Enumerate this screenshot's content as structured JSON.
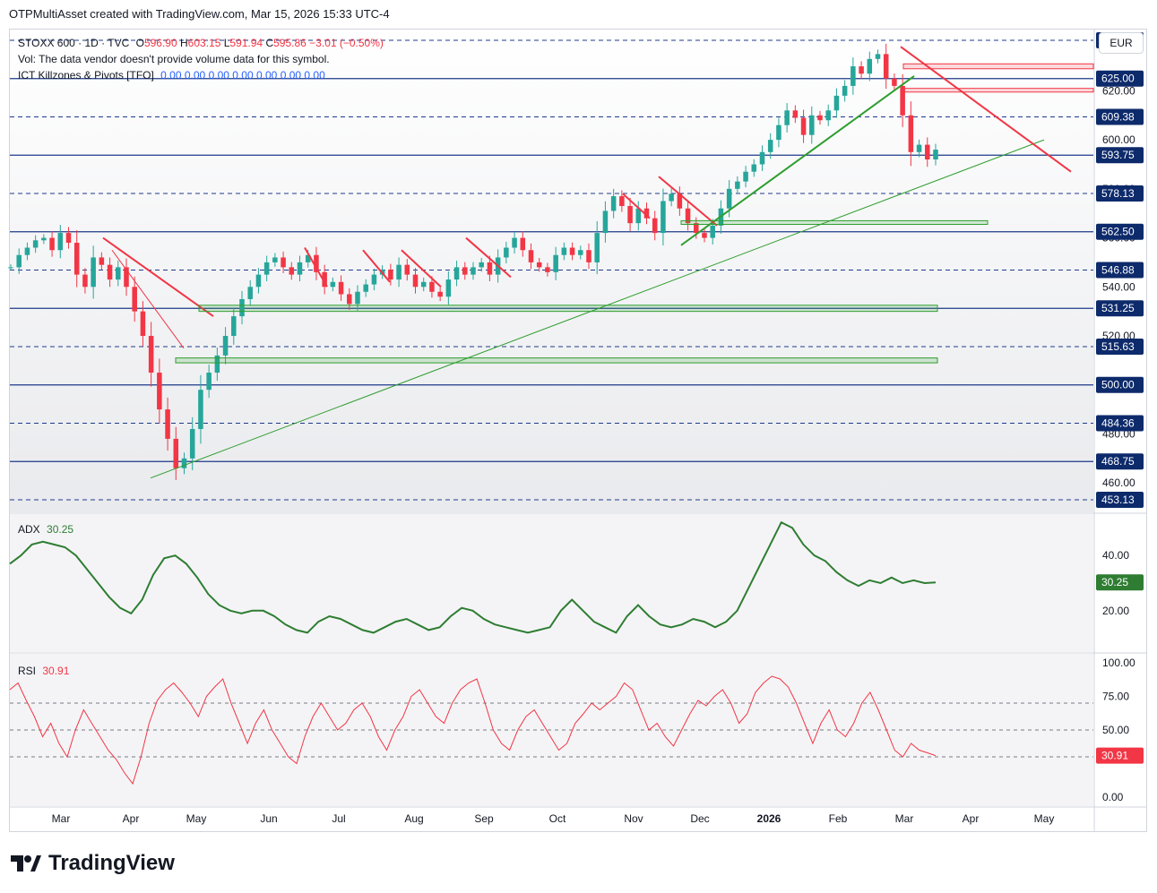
{
  "header": {
    "text": "OTPMultiAsset created with TradingView.com, Mar 15, 2026 15:33 UTC-4"
  },
  "legend": {
    "symbol": "STOXX 600 · 1D · TVC",
    "o_label": "O",
    "o": "596.90",
    "h_label": "H",
    "h": "603.15",
    "l_label": "L",
    "l": "591.94",
    "c_label": "C",
    "c": "595.86",
    "change": "−3.01 (−0.50%)",
    "vol_text": "Vol: The data vendor doesn't provide volume data for this symbol.",
    "ict_label": "ICT Killzones & Pivots [TFO]",
    "ict_values": [
      "0.00",
      "0.00",
      "0.00",
      "0.00",
      "0.00",
      "0.00",
      "0.00"
    ]
  },
  "currency": "EUR",
  "colors": {
    "up": "#26a69a",
    "down": "#f23645",
    "green_line": "#2e9e2e",
    "red_line": "#f23645",
    "level": "#1e3a8a",
    "adx": "#2e7d32",
    "rsi": "#f23645"
  },
  "chart_data": [
    {
      "type": "candlestick",
      "title": "STOXX 600 · 1D · TVC",
      "x_ticks": [
        "Mar",
        "Apr",
        "May",
        "Jun",
        "Jul",
        "Aug",
        "Sep",
        "Oct",
        "Nov",
        "Dec",
        "2026",
        "Feb",
        "Mar",
        "Apr",
        "May"
      ],
      "ylim": [
        448,
        645
      ],
      "y_ticks": [
        "620.00",
        "600.00",
        "580.00",
        "560.00",
        "540.00",
        "520.00",
        "500.00",
        "480.00",
        "460.00"
      ],
      "levels": [
        {
          "value": "640.63",
          "style": "dashed"
        },
        {
          "value": "625.00",
          "style": "solid"
        },
        {
          "value": "609.38",
          "style": "dashed"
        },
        {
          "value": "593.75",
          "style": "solid"
        },
        {
          "value": "578.13",
          "style": "dashed"
        },
        {
          "value": "562.50",
          "style": "solid"
        },
        {
          "value": "546.88",
          "style": "dashed"
        },
        {
          "value": "531.25",
          "style": "solid"
        },
        {
          "value": "515.63",
          "style": "dashed"
        },
        {
          "value": "500.00",
          "style": "solid"
        },
        {
          "value": "484.36",
          "style": "dashed"
        },
        {
          "value": "468.75",
          "style": "solid"
        },
        {
          "value": "453.13",
          "style": "dashed"
        }
      ],
      "close_path": [
        548,
        553,
        556,
        559,
        560,
        555,
        562,
        558,
        545,
        540,
        552,
        549,
        543,
        548,
        540,
        530,
        520,
        505,
        490,
        478,
        466,
        470,
        482,
        498,
        505,
        512,
        520,
        528,
        535,
        540,
        545,
        550,
        552,
        548,
        545,
        550,
        553,
        546,
        540,
        542,
        537,
        533,
        538,
        541,
        545,
        547,
        543,
        549,
        545,
        540,
        542,
        538,
        536,
        543,
        548,
        545,
        548,
        550,
        545,
        552,
        556,
        560,
        555,
        550,
        548,
        546,
        553,
        556,
        553,
        555,
        550,
        562,
        571,
        577,
        573,
        566,
        572,
        568,
        562,
        575,
        578,
        572,
        566,
        562,
        560,
        565,
        572,
        580,
        583,
        587,
        590,
        595,
        600,
        606,
        612,
        609,
        602,
        610,
        608,
        612,
        618,
        622,
        630,
        627,
        633,
        635,
        625,
        622,
        610,
        595,
        598,
        592,
        596
      ],
      "last_close": 595.86
    },
    {
      "type": "line",
      "title": "ADX",
      "last_value": "30.25",
      "ylim": [
        5,
        55
      ],
      "y_ticks": [
        "40.00",
        "20.00"
      ],
      "values": [
        37,
        40,
        44,
        45,
        44,
        43,
        40,
        35,
        30,
        25,
        21,
        19,
        24,
        33,
        39,
        40,
        37,
        32,
        26,
        22,
        20,
        19,
        20,
        20,
        18,
        15,
        13,
        12,
        16,
        18,
        17,
        15,
        13,
        12,
        14,
        16,
        17,
        15,
        13,
        14,
        18,
        21,
        20,
        17,
        15,
        14,
        13,
        12,
        13,
        14,
        20,
        24,
        20,
        16,
        14,
        12,
        18,
        22,
        18,
        15,
        14,
        15,
        17,
        16,
        14,
        16,
        20,
        28,
        36,
        44,
        52,
        50,
        44,
        40,
        38,
        34,
        31,
        29,
        31,
        30,
        32,
        30,
        31,
        30,
        30.25
      ]
    },
    {
      "type": "line",
      "title": "RSI",
      "last_value": "30.91",
      "ylim": [
        0,
        100
      ],
      "y_ticks": [
        "100.00",
        "75.00",
        "50.00",
        "0.00"
      ],
      "bands": [
        70,
        50,
        30
      ],
      "values": [
        80,
        85,
        72,
        60,
        45,
        55,
        40,
        30,
        50,
        65,
        55,
        45,
        35,
        28,
        18,
        10,
        30,
        55,
        72,
        80,
        85,
        78,
        70,
        60,
        75,
        82,
        88,
        70,
        55,
        40,
        55,
        65,
        50,
        40,
        30,
        25,
        45,
        60,
        70,
        60,
        50,
        55,
        65,
        70,
        60,
        45,
        35,
        50,
        60,
        75,
        80,
        70,
        60,
        55,
        70,
        80,
        85,
        88,
        70,
        50,
        40,
        35,
        50,
        60,
        65,
        55,
        45,
        35,
        40,
        55,
        62,
        70,
        65,
        70,
        75,
        85,
        80,
        65,
        50,
        55,
        45,
        38,
        50,
        62,
        72,
        68,
        75,
        80,
        70,
        55,
        62,
        78,
        85,
        90,
        88,
        82,
        70,
        55,
        40,
        55,
        65,
        50,
        45,
        55,
        70,
        78,
        65,
        50,
        35,
        30,
        40,
        35,
        33,
        30.91
      ]
    }
  ],
  "brand": "TradingView"
}
